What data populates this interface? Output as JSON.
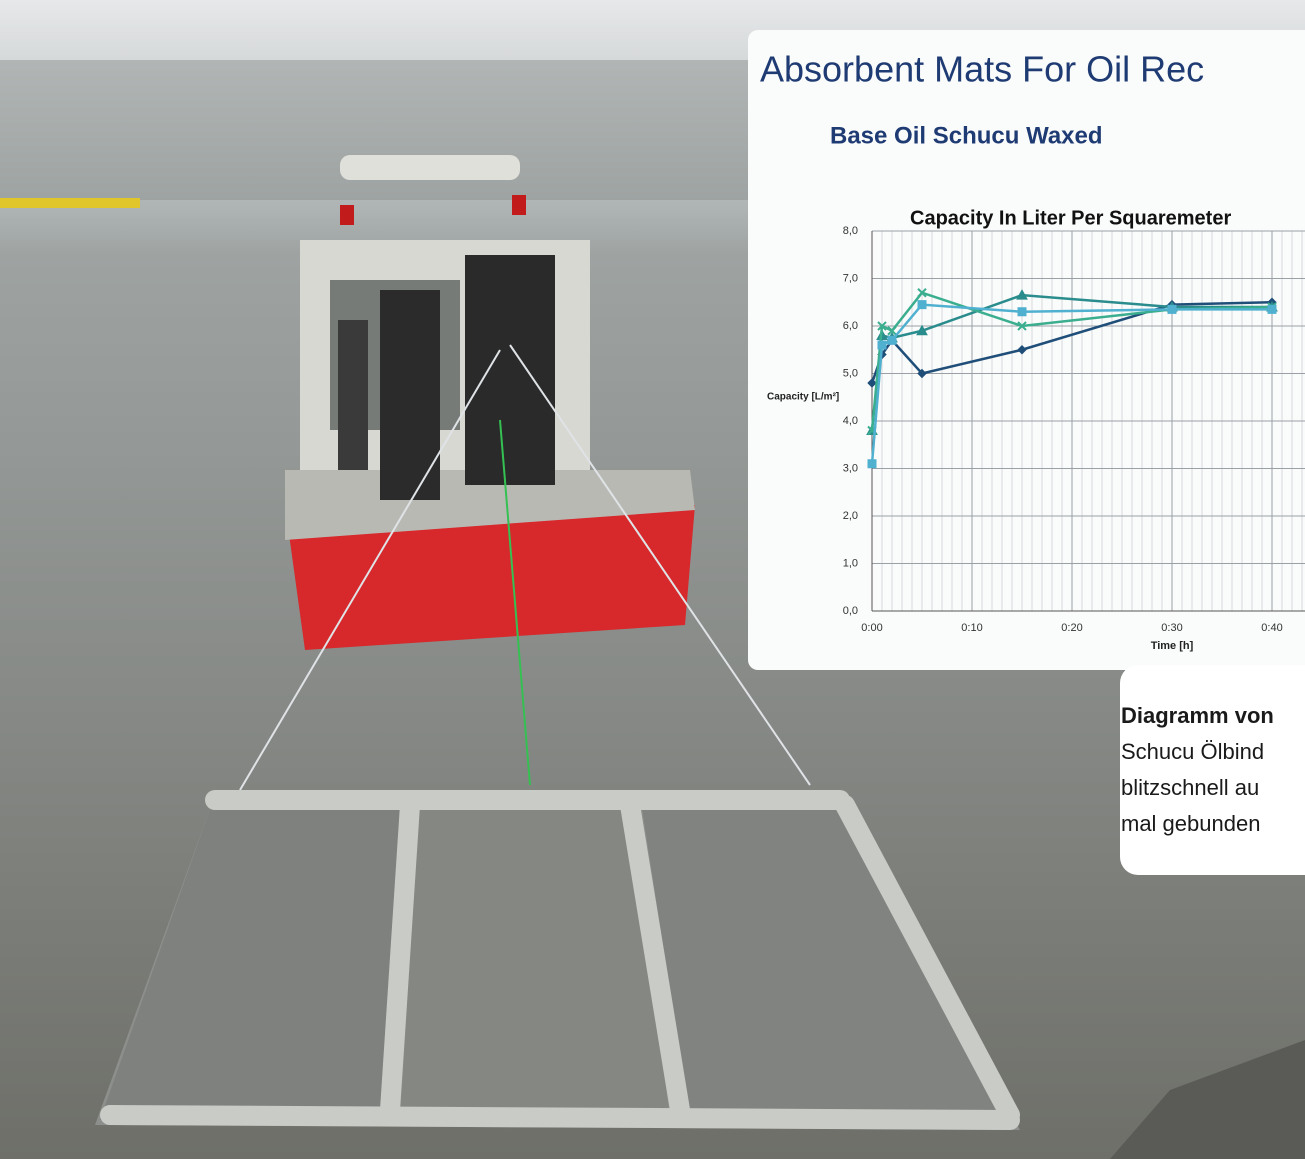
{
  "header": {
    "title": "Absorbent Mats For Oil Rec",
    "subtitle": "Base Oil Schucu Waxed"
  },
  "chart_data": {
    "type": "line",
    "title": "Capacity In Liter Per Squaremeter",
    "y_label": "Capacity [L/m²]",
    "x_label": "Time [h]",
    "x": [
      0,
      1,
      2,
      5,
      15,
      30,
      40
    ],
    "series": [
      {
        "color": "#1f4e79",
        "marker": "diamond",
        "values": [
          4.8,
          5.4,
          5.7,
          5.0,
          5.5,
          6.45,
          6.5
        ]
      },
      {
        "color": "#2a8c8c",
        "marker": "triangle",
        "values": [
          3.8,
          5.8,
          5.75,
          5.9,
          6.65,
          6.4,
          6.4
        ]
      },
      {
        "color": "#3aae8e",
        "marker": "cross",
        "values": [
          3.8,
          6.0,
          5.9,
          6.7,
          6.0,
          6.35,
          6.4
        ]
      },
      {
        "color": "#4fb0d0",
        "marker": "square",
        "values": [
          3.1,
          5.6,
          5.7,
          6.45,
          6.3,
          6.35,
          6.35
        ]
      }
    ],
    "xlim": [
      0,
      43.3
    ],
    "ylim": [
      0,
      8
    ],
    "xticks": [
      {
        "value": 0,
        "label": "0:00"
      },
      {
        "value": 10,
        "label": "0:10"
      },
      {
        "value": 20,
        "label": "0:20"
      },
      {
        "value": 30,
        "label": "0:30"
      },
      {
        "value": 40,
        "label": "0:40"
      }
    ],
    "yticks": [
      {
        "value": 0,
        "label": "0,0"
      },
      {
        "value": 1,
        "label": "1,0"
      },
      {
        "value": 2,
        "label": "2,0"
      },
      {
        "value": 3,
        "label": "3,0"
      },
      {
        "value": 4,
        "label": "4,0"
      },
      {
        "value": 5,
        "label": "5,0"
      },
      {
        "value": 6,
        "label": "6,0"
      },
      {
        "value": 7,
        "label": "7,0"
      },
      {
        "value": 8,
        "label": "8,0"
      }
    ],
    "grid": true,
    "minor_grid_per_tick": 10
  },
  "caption": {
    "lines": [
      "Diagramm von",
      "Schucu Ölbind",
      "blitzschnell au",
      "mal gebunden"
    ]
  }
}
